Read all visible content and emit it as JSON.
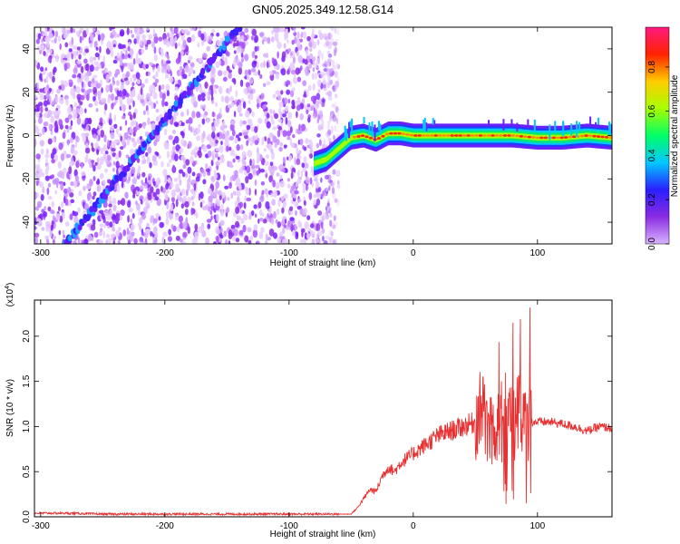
{
  "page": {
    "title": "GN05.2025.349.12.58.G14"
  },
  "colorbar": {
    "label": "Normalized spectral amplitude",
    "ticks": [
      "0.0",
      "0.2",
      "0.4",
      "0.6",
      "0.8"
    ],
    "tick_values": [
      0.0,
      0.2,
      0.4,
      0.6,
      0.8
    ],
    "range": [
      0.0,
      0.98
    ],
    "stops": [
      "#d9b3ff",
      "#8a2be2",
      "#2a1fff",
      "#00c8ff",
      "#00ff66",
      "#a8ff00",
      "#ffcc00",
      "#ff2200",
      "#ff1a80"
    ]
  },
  "chart_data": [
    {
      "type": "heatmap",
      "title": "GN05.2025.349.12.58.G14",
      "xlabel": "Height of straight line (km)",
      "ylabel": "Frequency (Hz)",
      "xlim": [
        -305,
        160
      ],
      "ylim": [
        -50,
        50
      ],
      "xticks": [
        -300,
        -200,
        -100,
        0,
        100
      ],
      "yticks": [
        -40,
        -20,
        0,
        20,
        40
      ],
      "grid": false,
      "features": {
        "noise_region_x": [
          -305,
          -60
        ],
        "diagonal_streak": {
          "x_start": -280,
          "y_start": -50,
          "x_end": -140,
          "y_end": 50
        },
        "signal_ridge": {
          "x": [
            -80,
            -70,
            -60,
            -50,
            -40,
            -30,
            -20,
            -10,
            0,
            20,
            40,
            60,
            80,
            100,
            120,
            140,
            160
          ],
          "y": [
            -13,
            -11,
            -6,
            -1,
            0,
            -2,
            1,
            1,
            0,
            0,
            0,
            0,
            0,
            -1,
            -1,
            0,
            -1
          ]
        }
      }
    },
    {
      "type": "line",
      "xlabel": "Height of straight line (km)",
      "ylabel": "SNR (10 * v/v)",
      "y_multiplier": "(x10",
      "y_multiplier_exp": "4",
      "y_multiplier_close": ")",
      "xlim": [
        -305,
        160
      ],
      "ylim": [
        0.0,
        2.4
      ],
      "xticks": [
        -300,
        -200,
        -100,
        0,
        100
      ],
      "yticks": [
        "0.0",
        "0.5",
        "1.0",
        "1.5",
        "2.0"
      ],
      "ytick_values": [
        0.0,
        0.5,
        1.0,
        1.5,
        2.0
      ],
      "series": [
        {
          "color": "#e83030",
          "x": [
            -305,
            -280,
            -250,
            -200,
            -150,
            -100,
            -70,
            -50,
            -45,
            -40,
            -35,
            -30,
            -25,
            -20,
            -15,
            -10,
            -5,
            0,
            5,
            10,
            20,
            30,
            40,
            50,
            55,
            60,
            65,
            70,
            75,
            78,
            80,
            85,
            90,
            95,
            100,
            110,
            120,
            130,
            140,
            150,
            160
          ],
          "y": [
            0.04,
            0.04,
            0.03,
            0.03,
            0.03,
            0.03,
            0.03,
            0.03,
            0.1,
            0.2,
            0.3,
            0.28,
            0.45,
            0.55,
            0.5,
            0.6,
            0.65,
            0.7,
            0.75,
            0.8,
            0.9,
            0.95,
            1.0,
            1.05,
            1.2,
            1.0,
            0.95,
            1.1,
            0.9,
            1.3,
            1.0,
            1.2,
            1.0,
            1.05,
            1.05,
            1.05,
            1.03,
            1.0,
            0.95,
            1.0,
            0.98
          ]
        }
      ]
    }
  ]
}
